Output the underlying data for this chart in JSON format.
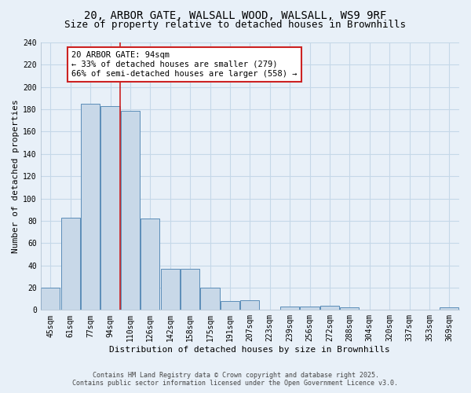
{
  "title_line1": "20, ARBOR GATE, WALSALL WOOD, WALSALL, WS9 9RF",
  "title_line2": "Size of property relative to detached houses in Brownhills",
  "xlabel": "Distribution of detached houses by size in Brownhills",
  "ylabel": "Number of detached properties",
  "categories": [
    "45sqm",
    "61sqm",
    "77sqm",
    "94sqm",
    "110sqm",
    "126sqm",
    "142sqm",
    "158sqm",
    "175sqm",
    "191sqm",
    "207sqm",
    "223sqm",
    "239sqm",
    "256sqm",
    "272sqm",
    "288sqm",
    "304sqm",
    "320sqm",
    "337sqm",
    "353sqm",
    "369sqm"
  ],
  "values": [
    20,
    83,
    185,
    183,
    179,
    82,
    37,
    37,
    20,
    8,
    9,
    0,
    3,
    3,
    4,
    2,
    0,
    0,
    0,
    0,
    2
  ],
  "bar_color": "#c8d8e8",
  "bar_edge_color": "#5b8db8",
  "grid_color": "#c5d8e8",
  "bg_color": "#e8f0f8",
  "red_line_x": 3.5,
  "annotation_text": "20 ARBOR GATE: 94sqm\n← 33% of detached houses are smaller (279)\n66% of semi-detached houses are larger (558) →",
  "annotation_box_color": "white",
  "annotation_box_edge": "#cc2222",
  "ylim": [
    0,
    240
  ],
  "yticks": [
    0,
    20,
    40,
    60,
    80,
    100,
    120,
    140,
    160,
    180,
    200,
    220,
    240
  ],
  "footer_line1": "Contains HM Land Registry data © Crown copyright and database right 2025.",
  "footer_line2": "Contains public sector information licensed under the Open Government Licence v3.0.",
  "title_fontsize": 10,
  "subtitle_fontsize": 9,
  "axis_label_fontsize": 8,
  "tick_fontsize": 7,
  "annotation_fontsize": 7.5,
  "footer_fontsize": 6
}
